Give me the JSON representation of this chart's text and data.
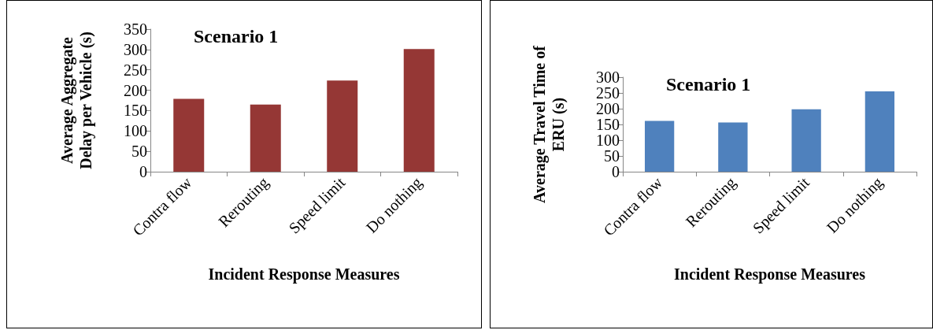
{
  "chart_data": [
    {
      "type": "bar",
      "title": "Scenario 1",
      "xlabel": "Incident Response Measures",
      "ylabel": "Average Aggregate Delay per Vehicle (s)",
      "categories": [
        "Contra flow",
        "Rerouting",
        "Speed limit",
        "Do nothing"
      ],
      "values": [
        179,
        165,
        224,
        301
      ],
      "color": "#953735",
      "ylim": [
        0,
        350
      ],
      "yticks": [
        0,
        50,
        100,
        150,
        200,
        250,
        300,
        350
      ],
      "grid": false
    },
    {
      "type": "bar",
      "title": "Scenario 1",
      "xlabel": "Incident Response Measures",
      "ylabel": "Average Travel Time of ERU (s)",
      "categories": [
        "Contra flow",
        "Rerouting",
        "Speed limit",
        "Do nothing"
      ],
      "values": [
        161,
        156,
        198,
        255
      ],
      "color": "#4f81bd",
      "ylim": [
        0,
        300
      ],
      "yticks": [
        0,
        50,
        100,
        150,
        200,
        250,
        300
      ],
      "grid": false
    }
  ]
}
